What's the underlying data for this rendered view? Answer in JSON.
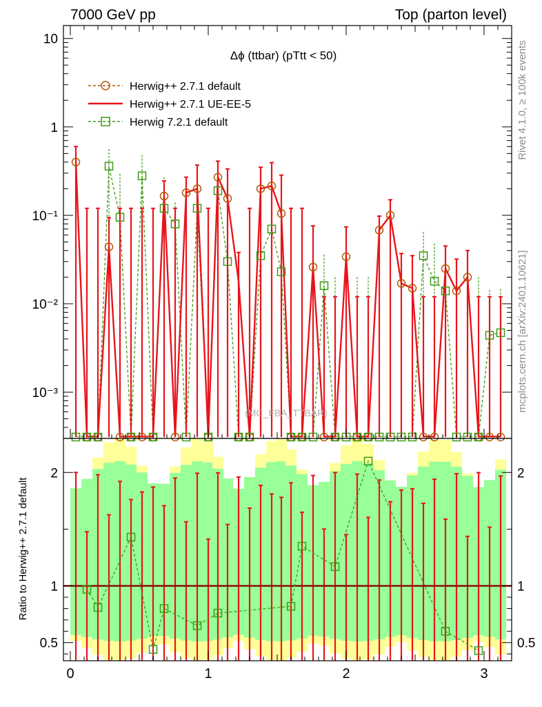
{
  "header": {
    "left": "7000 GeV pp",
    "right": "Top (parton level)"
  },
  "side_labels": {
    "rivet": "Rivet 4.1.0, ≥ 100k events",
    "mcplots": "mcplots.cern.ch [arXiv:2401.10621]"
  },
  "watermark": "(MC_FBA_TTBAR)",
  "colors": {
    "herwig_pp_default": "#b35900",
    "herwig_pp_ueee5": "#e8141a",
    "herwig7": "#3c9a14",
    "band_yellow": "#ffff99",
    "band_green": "#99ff99",
    "ratio_line": "#8b0000"
  },
  "chart_data": {
    "type": "line",
    "title": "Δϕ (ttbar) (pTtt < 50)",
    "xlabel": "",
    "ylabel": "",
    "ratio_ylabel": "Ratio to Herwig++ 2.7.1 default",
    "xlim": [
      -0.05,
      3.2
    ],
    "ylim": [
      0.0003,
      14
    ],
    "ratio_ylim": [
      0.34,
      2.3
    ],
    "x_ticks": [
      "0",
      "1",
      "2",
      "3"
    ],
    "y_ticks": [
      "10⁻³",
      "10⁻²",
      "10⁻¹",
      "1",
      "10"
    ],
    "ratio_y_ticks": [
      "0.5",
      "1",
      "2"
    ],
    "legend_position": "top-left",
    "x": [
      0.04,
      0.12,
      0.2,
      0.28,
      0.36,
      0.44,
      0.52,
      0.6,
      0.68,
      0.76,
      0.84,
      0.92,
      1.0,
      1.07,
      1.14,
      1.22,
      1.3,
      1.38,
      1.46,
      1.53,
      1.6,
      1.68,
      1.76,
      1.84,
      1.92,
      2.0,
      2.08,
      2.16,
      2.24,
      2.32,
      2.4,
      2.48,
      2.56,
      2.64,
      2.72,
      2.8,
      2.88,
      2.96,
      3.04,
      3.12
    ],
    "series": [
      {
        "name": "Herwig++ 2.7.1 default",
        "style": "dashed-circle",
        "values": [
          0.4,
          0,
          0,
          0.044,
          0,
          0,
          0,
          0,
          0.165,
          0,
          0.18,
          0.2,
          0,
          0.27,
          0.155,
          0,
          0,
          0.2,
          0.215,
          0.105,
          0,
          0,
          0.026,
          0,
          0,
          0.034,
          0,
          0,
          0.068,
          0.1,
          0.017,
          0.015,
          0,
          0,
          0.025,
          0.014,
          0.02,
          0,
          0,
          0
        ],
        "errors": [
          0.2,
          0.12,
          0.12,
          0.05,
          0.12,
          0.12,
          0.12,
          0.12,
          0.08,
          0.12,
          0.09,
          0.17,
          0.12,
          0.14,
          0.18,
          0.12,
          0.12,
          0.15,
          0.18,
          0.18,
          0.12,
          0.12,
          0.05,
          0.012,
          0.012,
          0.04,
          0.012,
          0.012,
          0.03,
          0.05,
          0.02,
          0.02,
          0.012,
          0.012,
          0.02,
          0.018,
          0.02,
          0.012,
          0.012,
          0.012
        ]
      },
      {
        "name": "Herwig++ 2.7.1 UE-EE-5",
        "style": "solid",
        "values": [
          0.4,
          0,
          0,
          0.044,
          0,
          0,
          0,
          0,
          0.165,
          0,
          0.18,
          0.2,
          0,
          0.27,
          0.155,
          0.018,
          0,
          0.2,
          0.215,
          0.105,
          0,
          0,
          0.026,
          0,
          0,
          0.034,
          0,
          0,
          0.068,
          0.1,
          0.017,
          0.015,
          0,
          0,
          0.025,
          0.014,
          0.02,
          0,
          0,
          0
        ],
        "errors": [
          0.2,
          0.12,
          0.12,
          0.05,
          0.12,
          0.12,
          0.12,
          0.12,
          0.08,
          0.12,
          0.09,
          0.17,
          0.12,
          0.14,
          0.18,
          0.02,
          0.12,
          0.15,
          0.18,
          0.18,
          0.12,
          0.12,
          0.05,
          0.012,
          0.012,
          0.04,
          0.012,
          0.012,
          0.03,
          0.05,
          0.02,
          0.02,
          0.012,
          0.012,
          0.02,
          0.018,
          0.02,
          0.012,
          0.012,
          0.012
        ]
      },
      {
        "name": "Herwig 7.2.1 default",
        "style": "dashed-square",
        "values": [
          0,
          0,
          0,
          0.36,
          0.095,
          0,
          0.28,
          0,
          0.12,
          0.08,
          0,
          0.12,
          0,
          0.19,
          0.03,
          0,
          0,
          0.035,
          0.07,
          0.023,
          0,
          0,
          0,
          0.016,
          0,
          0,
          0,
          0,
          0,
          0,
          0,
          0,
          0.035,
          0.018,
          0.014,
          0,
          0,
          0,
          0.0044,
          0.0047
        ],
        "errors": [
          0.05,
          0.05,
          0.05,
          0.2,
          0.2,
          0.05,
          0.2,
          0.05,
          0.15,
          0.06,
          0.05,
          0.2,
          0.05,
          0.2,
          0.04,
          0.02,
          0.02,
          0.05,
          0.06,
          0.04,
          0.02,
          0.02,
          0.02,
          0.02,
          0.02,
          0.02,
          0.02,
          0.02,
          0.02,
          0.02,
          0.02,
          0.02,
          0.03,
          0.03,
          0.02,
          0.02,
          0.02,
          0.02,
          0.01,
          0.01
        ]
      }
    ],
    "ratio": {
      "herwig7_x": [
        0.12,
        0.2,
        0.44,
        0.6,
        0.68,
        0.92,
        1.07,
        1.6,
        1.68,
        1.92,
        2.16,
        2.72,
        2.96
      ],
      "herwig7_values": [
        0.97,
        0.81,
        1.43,
        0.44,
        0.8,
        0.65,
        0.76,
        0.82,
        1.35,
        1.17,
        2.1,
        0.6,
        0.43
      ]
    }
  }
}
